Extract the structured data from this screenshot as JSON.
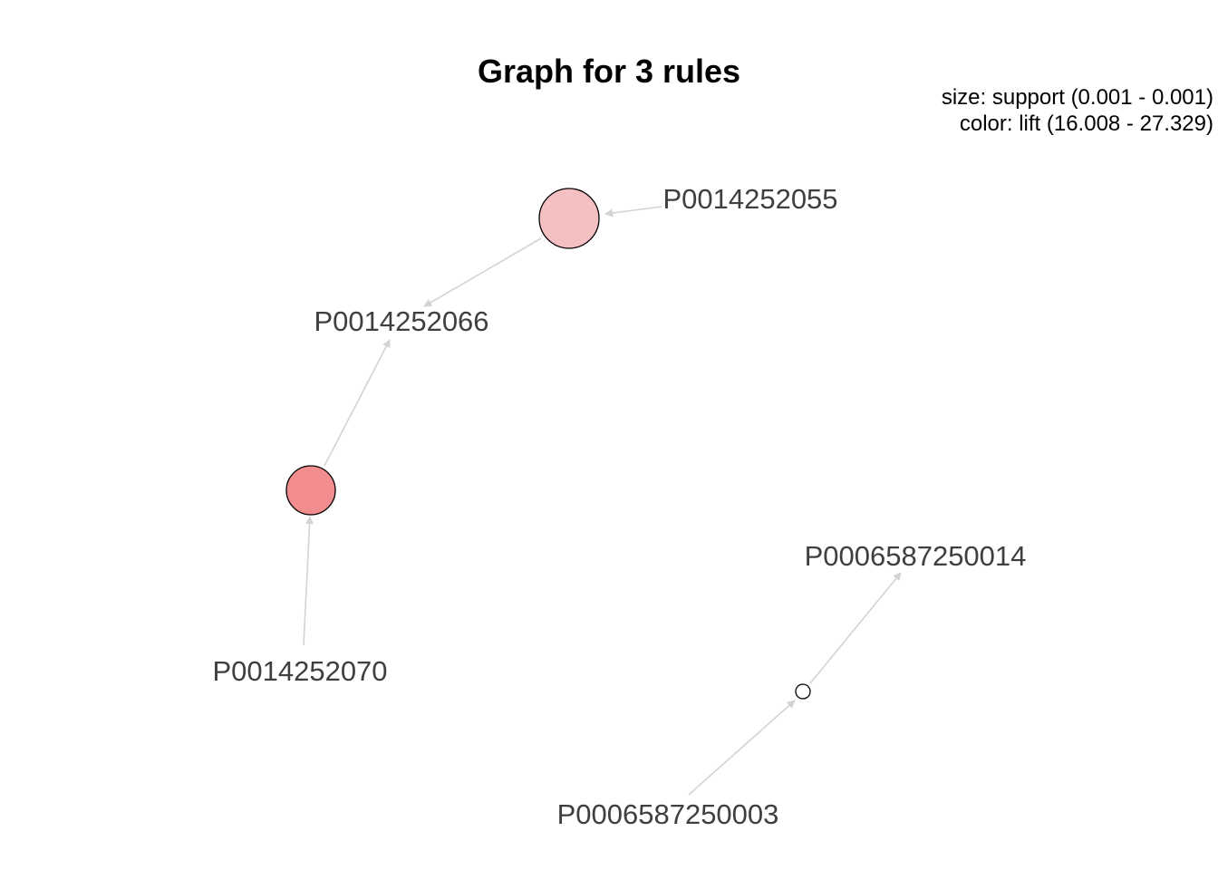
{
  "graph": {
    "title": "Graph for 3 rules",
    "legend": {
      "size_text": "size: support (0.001 - 0.001)",
      "color_text": "color: lift (16.008 - 27.329)"
    },
    "items": [
      {
        "id": "i55",
        "label": "P0014252055"
      },
      {
        "id": "i66",
        "label": "P0014252066"
      },
      {
        "id": "i70",
        "label": "P0014252070"
      },
      {
        "id": "i14",
        "label": "P0006587250014"
      },
      {
        "id": "i03",
        "label": "P0006587250003"
      }
    ],
    "rules": [
      {
        "id": "r1",
        "lhs": "P0014252055",
        "rhs": "P0014252066",
        "fill": "#f4c0c2"
      },
      {
        "id": "r2",
        "lhs": "P0014252070",
        "rhs": "P0014252066",
        "fill": "#f28d8f"
      },
      {
        "id": "r3",
        "lhs": "P0006587250003",
        "rhs": "P0006587250014",
        "fill": "#ffffff"
      }
    ]
  }
}
